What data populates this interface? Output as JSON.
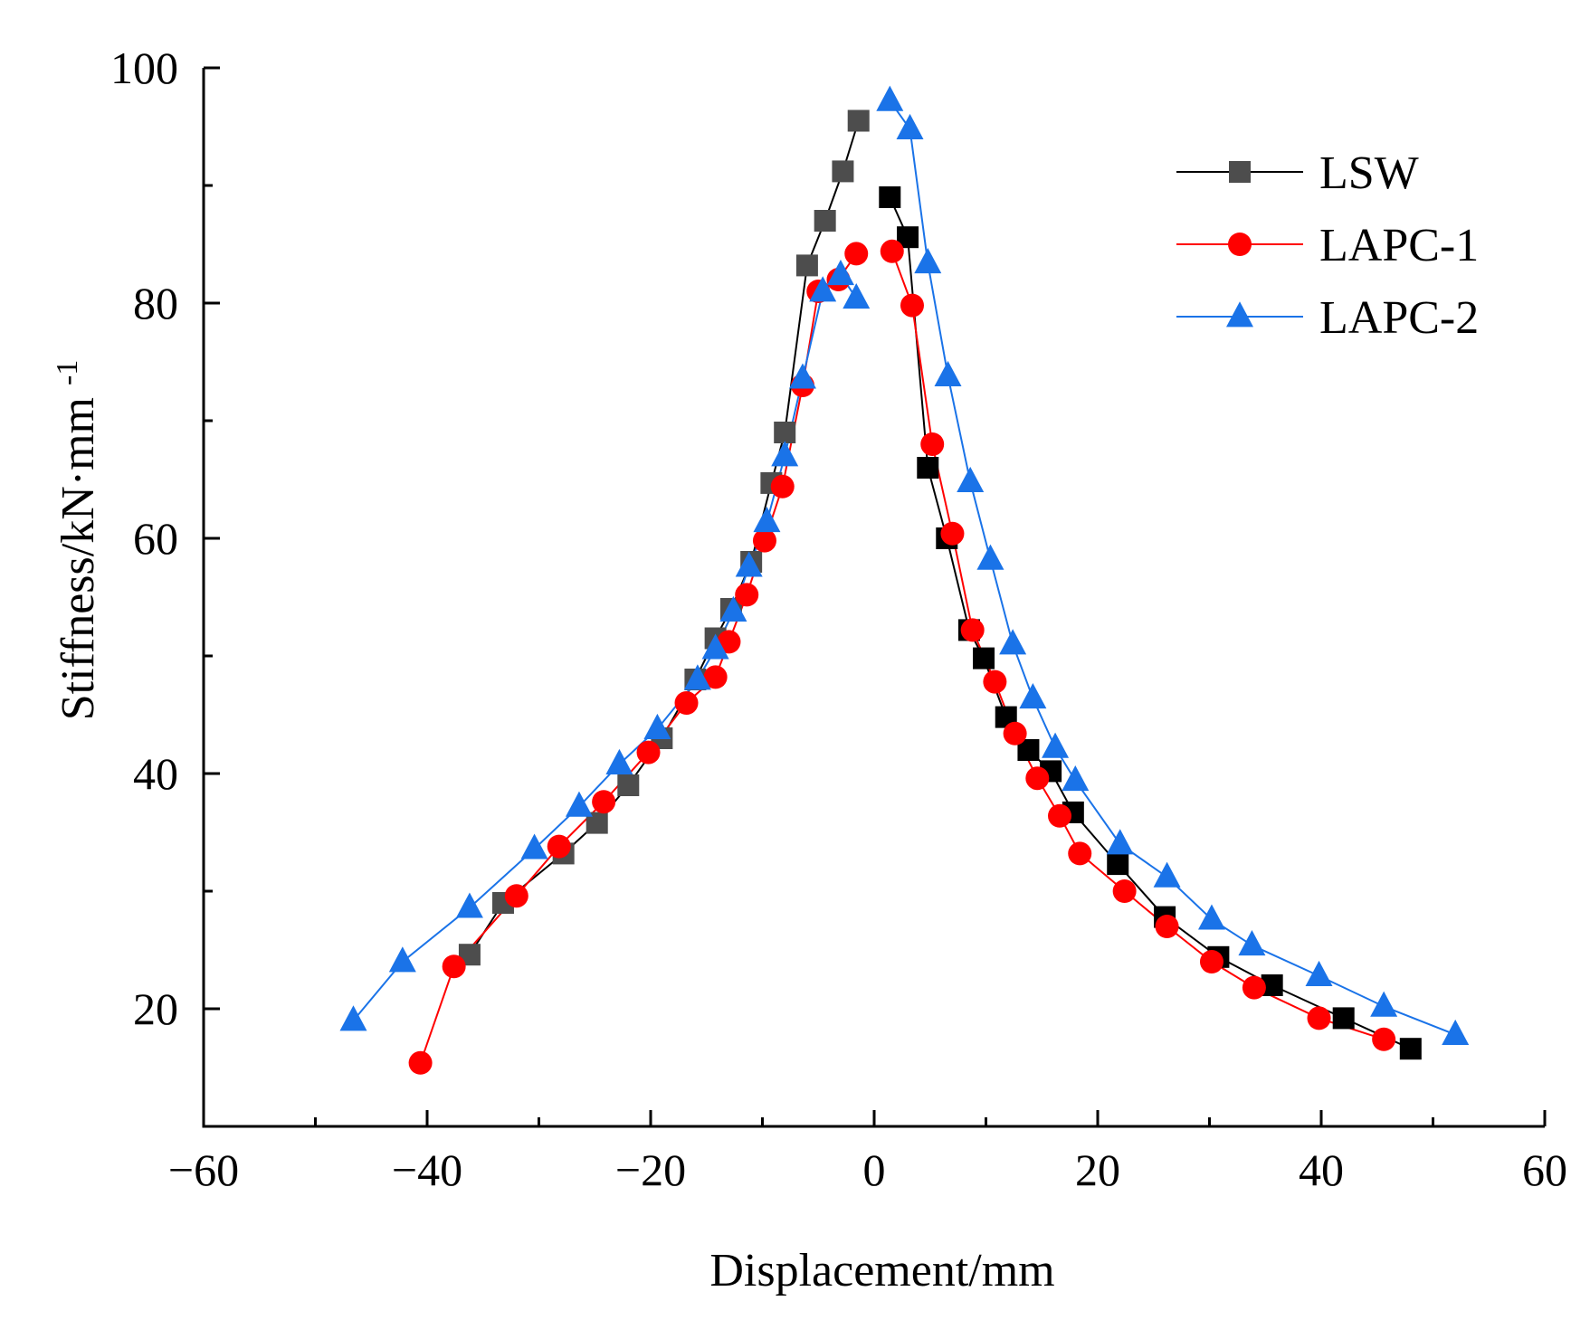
{
  "chart_data": {
    "type": "line",
    "title": "",
    "xlabel": "Displacement/mm",
    "ylabel": "Stiffness/kN·mm",
    "ylabel_sup": "-1",
    "xlim": [
      -60,
      60
    ],
    "ylim": [
      10,
      100
    ],
    "xticks": [
      -60,
      -40,
      -20,
      0,
      20,
      40,
      60
    ],
    "yticks": [
      20,
      40,
      60,
      80,
      100
    ],
    "x_tick_labels": [
      "−60",
      "−40",
      "−20",
      "0",
      "20",
      "40",
      "60"
    ],
    "y_tick_labels": [
      "20",
      "40",
      "60",
      "80",
      "100"
    ],
    "x_minor_step": 10,
    "y_minor_step": 10,
    "grid": false,
    "legend_position": "top-right",
    "series": [
      {
        "name": "LSW",
        "marker": "square",
        "color": "#000000",
        "marker_color_neg": "#4d4d4d",
        "marker_color_pos": "#000000",
        "negative": {
          "x": [
            -36.2,
            -33.2,
            -27.8,
            -24.8,
            -22.0,
            -19.0,
            -16.0,
            -14.2,
            -12.8,
            -11.0,
            -9.2,
            -8.0,
            -6.0,
            -4.4,
            -2.8,
            -1.4
          ],
          "y": [
            24.6,
            29.0,
            33.2,
            35.8,
            39.0,
            43.0,
            48.0,
            51.5,
            54.0,
            58.0,
            64.7,
            69.0,
            83.2,
            87.0,
            91.2,
            95.5
          ]
        },
        "positive": {
          "x": [
            1.4,
            3.0,
            4.8,
            6.5,
            8.5,
            9.8,
            11.8,
            13.8,
            15.8,
            17.8,
            21.8,
            26.0,
            30.8,
            35.6,
            42.0,
            48.0
          ],
          "y": [
            89.0,
            85.6,
            66.0,
            60.0,
            52.2,
            49.8,
            44.8,
            42.0,
            40.2,
            36.7,
            32.3,
            27.8,
            24.4,
            22.0,
            19.2,
            16.6
          ]
        }
      },
      {
        "name": "LAPC-1",
        "marker": "circle",
        "color": "#ff0000",
        "negative": {
          "x": [
            -40.6,
            -37.6,
            -32.0,
            -28.2,
            -24.2,
            -20.2,
            -16.8,
            -14.2,
            -13.0,
            -11.4,
            -9.8,
            -8.2,
            -6.4,
            -5.0,
            -3.2,
            -1.6
          ],
          "y": [
            15.4,
            23.6,
            29.6,
            33.8,
            37.6,
            41.8,
            46.0,
            48.2,
            51.2,
            55.2,
            59.8,
            64.4,
            73.0,
            81.0,
            82.0,
            84.2
          ]
        },
        "positive": {
          "x": [
            1.6,
            3.4,
            5.2,
            7.0,
            8.8,
            10.8,
            12.6,
            14.6,
            16.6,
            18.4,
            22.4,
            26.2,
            30.2,
            34.0,
            39.8,
            45.6
          ],
          "y": [
            84.4,
            79.8,
            68.0,
            60.4,
            52.2,
            47.8,
            43.4,
            39.6,
            36.4,
            33.2,
            30.0,
            27.0,
            24.0,
            21.8,
            19.2,
            17.4
          ]
        }
      },
      {
        "name": "LAPC-2",
        "marker": "triangle",
        "color": "#1a73e8",
        "negative": {
          "x": [
            -46.6,
            -42.2,
            -36.2,
            -30.4,
            -26.4,
            -22.8,
            -19.4,
            -15.8,
            -14.2,
            -12.6,
            -11.2,
            -9.6,
            -8.0,
            -6.4,
            -4.6,
            -3.0,
            -1.6
          ],
          "y": [
            19.0,
            24.0,
            28.6,
            33.6,
            37.2,
            40.8,
            43.8,
            48.0,
            50.6,
            53.8,
            57.6,
            61.4,
            67.0,
            73.6,
            81.0,
            82.4,
            80.4
          ]
        },
        "positive": {
          "x": [
            1.4,
            3.2,
            4.8,
            6.6,
            8.6,
            10.4,
            12.4,
            14.2,
            16.2,
            18.0,
            22.0,
            26.2,
            30.2,
            33.8,
            39.8,
            45.6,
            52.0
          ],
          "y": [
            97.2,
            94.8,
            83.4,
            73.8,
            64.8,
            58.2,
            51.0,
            46.4,
            42.2,
            39.4,
            34.0,
            31.2,
            27.6,
            25.4,
            22.8,
            20.2,
            17.8
          ]
        }
      }
    ]
  }
}
